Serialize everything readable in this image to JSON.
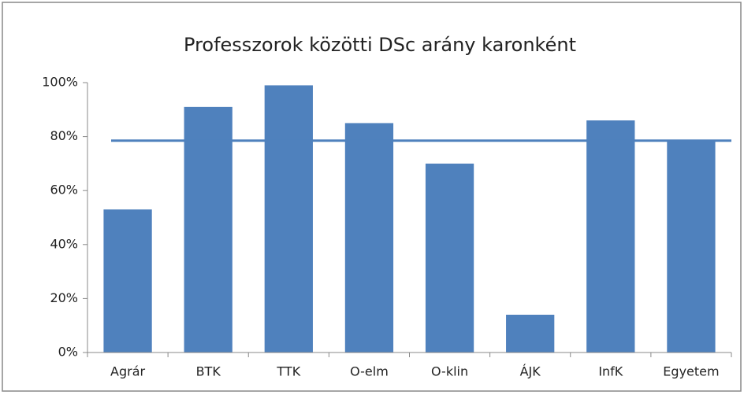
{
  "chart_data": {
    "type": "bar",
    "title": "Professzorok közötti DSc arány karonként",
    "categories": [
      "Agrár",
      "BTK",
      "TTK",
      "O-elm",
      "O-klin",
      "ÁJK",
      "InfK",
      "Egyetem"
    ],
    "values": [
      53,
      91,
      99,
      85,
      70,
      14,
      86,
      78.5
    ],
    "color": "#4f81bd",
    "reference_line": {
      "value": 78.5,
      "color": "#4f81bd"
    },
    "ylim": [
      0,
      100
    ],
    "yticks": [
      {
        "value": 0,
        "label": "0%"
      },
      {
        "value": 20,
        "label": "20%"
      },
      {
        "value": 40,
        "label": "40%"
      },
      {
        "value": 60,
        "label": "60%"
      },
      {
        "value": 80,
        "label": "80%"
      },
      {
        "value": 100,
        "label": "100%"
      }
    ],
    "grid": false
  }
}
